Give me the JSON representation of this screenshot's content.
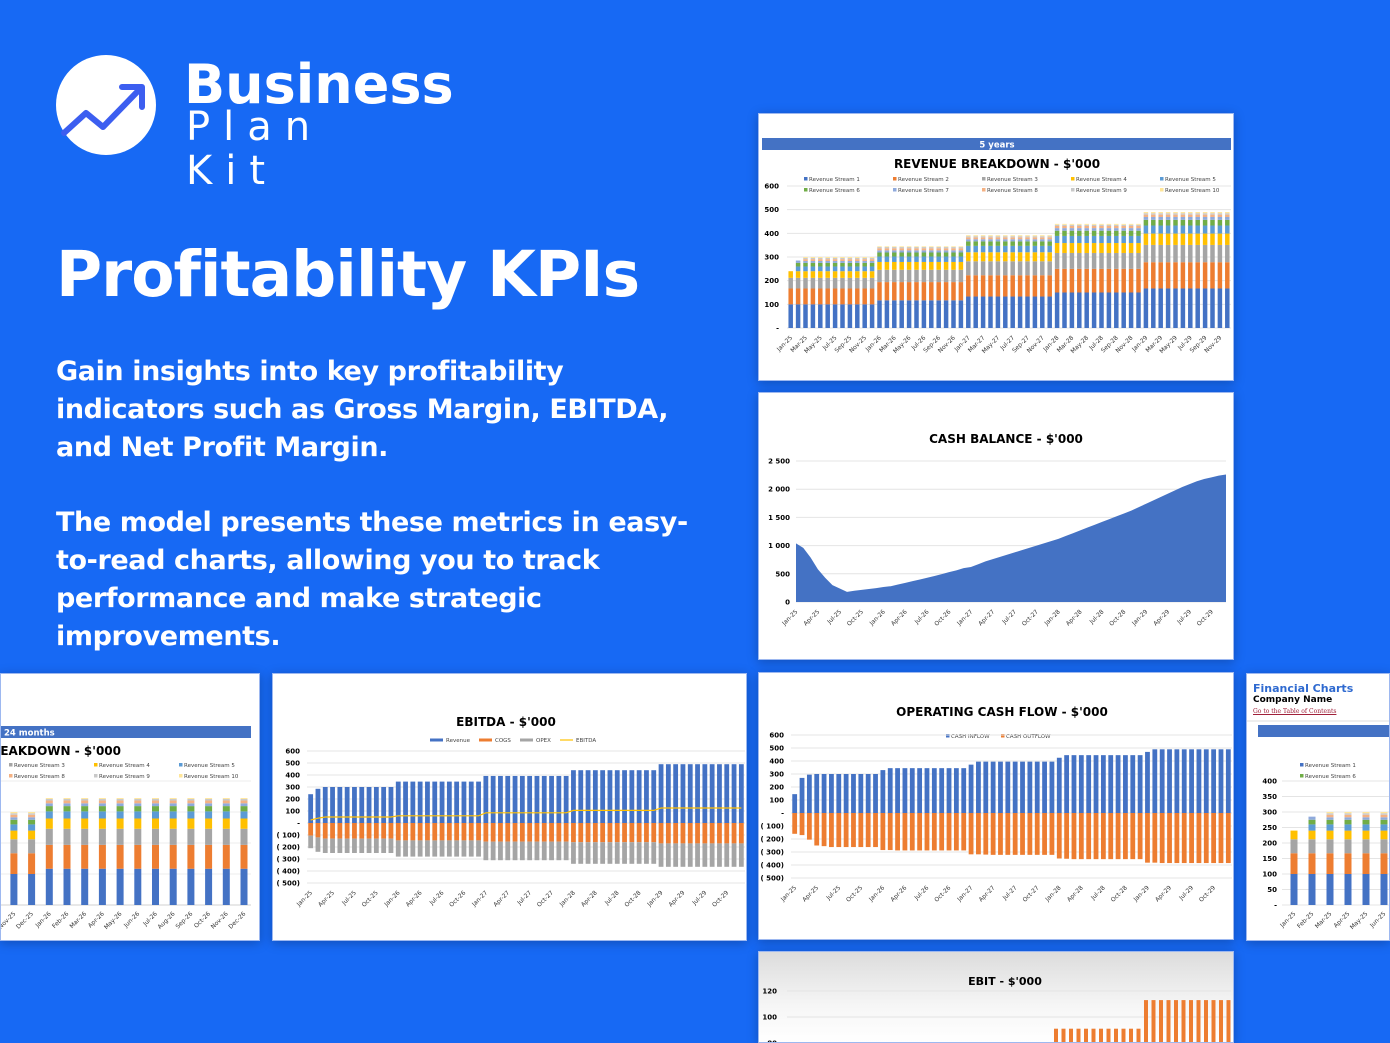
{
  "brand": {
    "line1": "Business",
    "line2": "Plan Kit",
    "logo_icon": "trend-arrow-up-icon"
  },
  "headline": "Profitability KPIs",
  "paragraphs": [
    "Gain insights into key profitability indicators such as Gross Margin, EBITDA, and Net Profit Margin.",
    "The model presents these metrics in easy-to-read charts, allowing you to track performance and make strategic improvements."
  ],
  "colors": {
    "background": "#1769F4",
    "stream": [
      "#4472C4",
      "#ED7D31",
      "#A5A5A5",
      "#FFC000",
      "#5B9BD5",
      "#70AD47",
      "#8FAADC",
      "#F4B183",
      "#C9C9C9",
      "#FFE699"
    ],
    "header_bar": "#4472C4"
  },
  "months": [
    "Jan-25",
    "Feb-25",
    "Mar-25",
    "Apr-25",
    "May-25",
    "Jun-25",
    "Jul-25",
    "Aug-25",
    "Sep-25",
    "Oct-25",
    "Nov-25",
    "Dec-25",
    "Jan-26",
    "Feb-26",
    "Mar-26",
    "Apr-26",
    "May-26",
    "Jun-26",
    "Jul-26",
    "Aug-26",
    "Sep-26",
    "Oct-26",
    "Nov-26",
    "Dec-26",
    "Jan-27",
    "Feb-27",
    "Mar-27",
    "Apr-27",
    "May-27",
    "Jun-27",
    "Jul-27",
    "Aug-27",
    "Sep-27",
    "Oct-27",
    "Nov-27",
    "Dec-27",
    "Jan-28",
    "Feb-28",
    "Mar-28",
    "Apr-28",
    "May-28",
    "Jun-28",
    "Jul-28",
    "Aug-28",
    "Sep-28",
    "Oct-28",
    "Nov-28",
    "Dec-28",
    "Jan-29",
    "Feb-29",
    "Mar-29",
    "Apr-29",
    "May-29",
    "Jun-29",
    "Jul-29",
    "Aug-29",
    "Sep-29",
    "Oct-29",
    "Nov-29",
    "Dec-29"
  ],
  "chart_data": [
    {
      "id": "revenue-5y",
      "type": "bar",
      "stacked": true,
      "header": "5 years",
      "title": "REVENUE BREAKDOWN - $'000",
      "legend": [
        "Revenue Stream 1",
        "Revenue Stream 2",
        "Revenue Stream 3",
        "Revenue Stream 4",
        "Revenue Stream 5",
        "Revenue Stream 6",
        "Revenue Stream 7",
        "Revenue Stream 8",
        "Revenue Stream 9",
        "Revenue Stream 10"
      ],
      "legend_placement": "top",
      "ylim": [
        0,
        600
      ],
      "yticks": [
        {
          "value": 0,
          "label": "-"
        },
        {
          "value": 100,
          "label": "100"
        },
        {
          "value": 200,
          "label": "200"
        },
        {
          "value": 300,
          "label": "300"
        },
        {
          "value": 400,
          "label": "400"
        },
        {
          "value": 500,
          "label": "500"
        },
        {
          "value": 600,
          "label": "600"
        }
      ],
      "grid": true,
      "stream_values_by_year": {
        "2025": [
          100,
          67,
          45,
          28,
          20,
          15,
          8,
          8,
          5,
          4
        ],
        "2026": [
          117,
          77,
          52,
          33,
          23,
          17,
          9,
          9,
          5,
          3
        ],
        "2027": [
          133,
          90,
          59,
          38,
          27,
          19,
          9,
          8,
          5,
          4
        ],
        "2028": [
          150,
          100,
          67,
          42,
          30,
          22,
          11,
          9,
          5,
          4
        ],
        "2029": [
          167,
          111,
          73,
          48,
          34,
          24,
          12,
          10,
          6,
          5
        ]
      },
      "stream_values_overrides": {
        "Jan-25": [
          100,
          67,
          45,
          28,
          0,
          0,
          0,
          0,
          0,
          0
        ],
        "Feb-25": [
          100,
          67,
          45,
          28,
          20,
          15,
          10,
          0,
          0,
          0
        ]
      }
    },
    {
      "id": "cash-balance",
      "type": "area",
      "title": "CASH BALANCE - $'000",
      "ylim": [
        0,
        2500
      ],
      "yticks": [
        {
          "value": 0,
          "label": "0"
        },
        {
          "value": 500,
          "label": "500"
        },
        {
          "value": 1000,
          "label": "1 000"
        },
        {
          "value": 1500,
          "label": "1 500"
        },
        {
          "value": 2000,
          "label": "2 000"
        },
        {
          "value": 2500,
          "label": "2 500"
        }
      ],
      "grid": true,
      "color": "#4472C4",
      "values": [
        1040,
        960,
        790,
        580,
        430,
        300,
        240,
        180,
        200,
        215,
        230,
        245,
        265,
        280,
        310,
        340,
        370,
        400,
        430,
        460,
        495,
        530,
        560,
        600,
        620,
        670,
        720,
        760,
        800,
        840,
        880,
        920,
        960,
        1000,
        1040,
        1080,
        1120,
        1170,
        1220,
        1270,
        1320,
        1370,
        1420,
        1470,
        1520,
        1570,
        1620,
        1680,
        1740,
        1800,
        1860,
        1920,
        1980,
        2040,
        2090,
        2140,
        2180,
        2210,
        2240,
        2260
      ]
    },
    {
      "id": "revenue-24m",
      "type": "bar",
      "stacked": true,
      "header": "24 months",
      "title": "REVENUE BREAKDOWN - $'000",
      "legend": [
        "Revenue Stream 1",
        "Revenue Stream 2",
        "Revenue Stream 3",
        "Revenue Stream 4",
        "Revenue Stream 5",
        "Revenue Stream 6",
        "Revenue Stream 7",
        "Revenue Stream 8",
        "Revenue Stream 9",
        "Revenue Stream 10"
      ],
      "ylim": [
        0,
        400
      ],
      "months_shown": 24
    },
    {
      "id": "ebitda",
      "type": "bar",
      "title": "EBITDA - $'000",
      "legend": [
        "Revenue",
        "COGS",
        "OPEX",
        "EBITDA"
      ],
      "legend_placement": "top",
      "ylim": [
        -500,
        600
      ],
      "yticks": [
        {
          "value": -500,
          "label": "( 500)"
        },
        {
          "value": -400,
          "label": "( 400)"
        },
        {
          "value": -300,
          "label": "( 300)"
        },
        {
          "value": -200,
          "label": "( 200)"
        },
        {
          "value": -100,
          "label": "( 100)"
        },
        {
          "value": 0,
          "label": "-"
        },
        {
          "value": 100,
          "label": "100"
        },
        {
          "value": 200,
          "label": "200"
        },
        {
          "value": 300,
          "label": "300"
        },
        {
          "value": 400,
          "label": "400"
        },
        {
          "value": 500,
          "label": "500"
        },
        {
          "value": 600,
          "label": "600"
        }
      ],
      "grid": true,
      "series": [
        {
          "name": "Revenue",
          "color": "#4472C4",
          "values": [
            240,
            285,
            300,
            300,
            300,
            300,
            300,
            300,
            300,
            300,
            300,
            300,
            345,
            345,
            345,
            345,
            345,
            345,
            345,
            345,
            345,
            345,
            345,
            345,
            392,
            392,
            392,
            392,
            392,
            392,
            392,
            392,
            392,
            392,
            392,
            392,
            440,
            440,
            440,
            440,
            440,
            440,
            440,
            440,
            440,
            440,
            440,
            440,
            490,
            490,
            490,
            490,
            490,
            490,
            490,
            490,
            490,
            490,
            490,
            490
          ]
        },
        {
          "name": "COGS",
          "color": "#ED7D31",
          "values": [
            -105,
            -120,
            -130,
            -130,
            -130,
            -130,
            -130,
            -130,
            -130,
            -130,
            -130,
            -130,
            -145,
            -145,
            -145,
            -145,
            -145,
            -145,
            -145,
            -145,
            -145,
            -145,
            -145,
            -145,
            -155,
            -155,
            -155,
            -155,
            -155,
            -155,
            -155,
            -155,
            -155,
            -155,
            -155,
            -155,
            -160,
            -160,
            -160,
            -160,
            -160,
            -160,
            -160,
            -160,
            -160,
            -160,
            -160,
            -160,
            -170,
            -170,
            -170,
            -170,
            -170,
            -170,
            -170,
            -170,
            -170,
            -170,
            -170,
            -170
          ]
        },
        {
          "name": "OPEX",
          "color": "#A5A5A5",
          "values": [
            -105,
            -120,
            -120,
            -120,
            -120,
            -120,
            -120,
            -120,
            -120,
            -120,
            -120,
            -120,
            -135,
            -135,
            -135,
            -135,
            -135,
            -135,
            -135,
            -135,
            -135,
            -135,
            -135,
            -135,
            -155,
            -155,
            -155,
            -155,
            -155,
            -155,
            -155,
            -155,
            -155,
            -155,
            -155,
            -155,
            -180,
            -180,
            -180,
            -180,
            -180,
            -180,
            -180,
            -180,
            -180,
            -180,
            -180,
            -180,
            -195,
            -195,
            -195,
            -195,
            -195,
            -195,
            -195,
            -195,
            -195,
            -195,
            -195,
            -195
          ]
        },
        {
          "name": "EBITDA",
          "color": "#FFC000",
          "type": "line",
          "values": [
            25,
            40,
            50,
            50,
            50,
            50,
            50,
            50,
            50,
            50,
            50,
            50,
            60,
            60,
            60,
            60,
            60,
            60,
            60,
            60,
            60,
            60,
            60,
            60,
            85,
            85,
            85,
            85,
            85,
            85,
            85,
            85,
            85,
            85,
            85,
            85,
            105,
            105,
            105,
            105,
            105,
            105,
            105,
            105,
            105,
            105,
            105,
            105,
            125,
            125,
            125,
            125,
            125,
            125,
            125,
            125,
            125,
            125,
            125,
            125
          ]
        }
      ]
    },
    {
      "id": "operating-cash-flow",
      "type": "bar",
      "title": "OPERATING CASH FLOW - $'000",
      "legend": [
        "CASH INFLOW",
        "CASH OUTFLOW"
      ],
      "legend_placement": "top",
      "ylim": [
        -500,
        600
      ],
      "yticks": [
        {
          "value": -500,
          "label": "( 500)"
        },
        {
          "value": -400,
          "label": "( 400)"
        },
        {
          "value": -300,
          "label": "( 300)"
        },
        {
          "value": -200,
          "label": "( 200)"
        },
        {
          "value": -100,
          "label": "( 100)"
        },
        {
          "value": 0,
          "label": "-"
        },
        {
          "value": 100,
          "label": "100"
        },
        {
          "value": 200,
          "label": "200"
        },
        {
          "value": 300,
          "label": "300"
        },
        {
          "value": 400,
          "label": "400"
        },
        {
          "value": 500,
          "label": "500"
        },
        {
          "value": 600,
          "label": "600"
        }
      ],
      "grid": true,
      "series": [
        {
          "name": "CASH INFLOW",
          "color": "#4472C4",
          "values": [
            145,
            270,
            295,
            300,
            300,
            300,
            300,
            300,
            300,
            300,
            300,
            300,
            330,
            345,
            345,
            345,
            345,
            345,
            345,
            345,
            345,
            345,
            345,
            345,
            372,
            395,
            395,
            395,
            395,
            395,
            395,
            395,
            395,
            395,
            395,
            395,
            425,
            445,
            445,
            445,
            445,
            445,
            445,
            445,
            445,
            445,
            445,
            445,
            470,
            490,
            490,
            490,
            490,
            490,
            490,
            490,
            490,
            490,
            490,
            490
          ]
        },
        {
          "name": "CASH OUTFLOW",
          "color": "#ED7D31",
          "values": [
            -160,
            -170,
            -205,
            -250,
            -255,
            -262,
            -262,
            -262,
            -262,
            -262,
            -262,
            -262,
            -285,
            -285,
            -288,
            -288,
            -288,
            -288,
            -288,
            -288,
            -288,
            -288,
            -288,
            -288,
            -318,
            -318,
            -320,
            -322,
            -322,
            -322,
            -322,
            -322,
            -322,
            -322,
            -322,
            -322,
            -350,
            -352,
            -355,
            -355,
            -355,
            -355,
            -355,
            -355,
            -355,
            -355,
            -355,
            -355,
            -382,
            -382,
            -385,
            -385,
            -385,
            -385,
            -385,
            -385,
            -385,
            -385,
            -385,
            -385
          ]
        }
      ]
    },
    {
      "id": "revenue-financial-charts",
      "type": "bar",
      "stacked": true,
      "heading": "Financial Charts",
      "company": "Company Name",
      "link": "Go to the Table of Contents",
      "legend": [
        "Revenue Stream 1",
        "Revenue Stream 6"
      ],
      "ylim": [
        0,
        400
      ],
      "yticks": [
        {
          "value": 0,
          "label": "-"
        },
        {
          "value": 50,
          "label": "50"
        },
        {
          "value": 100,
          "label": "100"
        },
        {
          "value": 150,
          "label": "150"
        },
        {
          "value": 200,
          "label": "200"
        },
        {
          "value": 250,
          "label": "250"
        },
        {
          "value": 300,
          "label": "300"
        },
        {
          "value": 350,
          "label": "350"
        },
        {
          "value": 400,
          "label": "400"
        }
      ]
    },
    {
      "id": "ebit",
      "type": "bar",
      "title": "EBIT - $'000",
      "yticks": [
        {
          "value": 80,
          "label": "80"
        },
        {
          "value": 100,
          "label": "100"
        },
        {
          "value": 120,
          "label": "120"
        }
      ],
      "grid": true,
      "color": "#ED7D31",
      "values_by_year": {
        "2028": 91,
        "2029": 113
      }
    }
  ]
}
